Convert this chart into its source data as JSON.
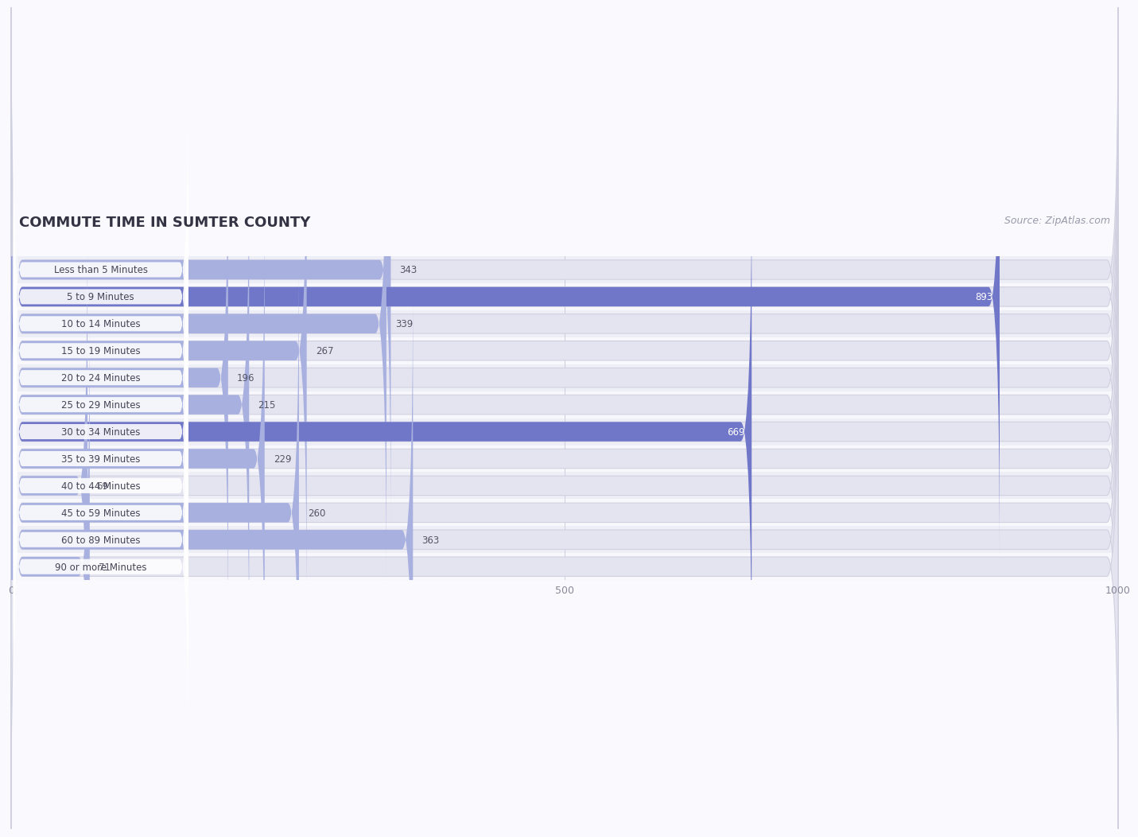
{
  "title": "COMMUTE TIME IN SUMTER COUNTY",
  "source": "Source: ZipAtlas.com",
  "categories": [
    "Less than 5 Minutes",
    "5 to 9 Minutes",
    "10 to 14 Minutes",
    "15 to 19 Minutes",
    "20 to 24 Minutes",
    "25 to 29 Minutes",
    "30 to 34 Minutes",
    "35 to 39 Minutes",
    "40 to 44 Minutes",
    "45 to 59 Minutes",
    "60 to 89 Minutes",
    "90 or more Minutes"
  ],
  "values": [
    343,
    893,
    339,
    267,
    196,
    215,
    669,
    229,
    69,
    260,
    363,
    71
  ],
  "bar_color_normal": "#a8b0e0",
  "bar_color_highlight": "#7076c8",
  "highlight_indices": [
    1,
    6
  ],
  "xlim_max": 1000,
  "xticks": [
    0,
    500,
    1000
  ],
  "bg_color": "#f8f8fc",
  "row_bg_light": "#f0f0f8",
  "row_bg_white": "#ffffff",
  "container_color": "#e8e8f2",
  "title_fontsize": 13,
  "source_fontsize": 9,
  "bar_label_fontsize": 8.5,
  "cat_label_fontsize": 8.5,
  "axis_label_fontsize": 9
}
